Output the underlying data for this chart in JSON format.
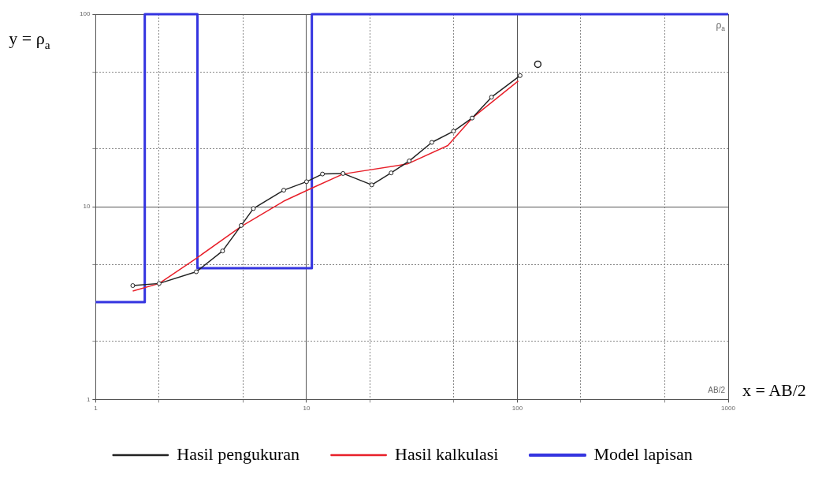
{
  "chart_data": {
    "type": "line",
    "xlabel": "x = AB/2",
    "ylabel": "y = ρ$_{a}$",
    "annotations": [
      "ρ$_{a}$",
      "AB/2"
    ],
    "log": "xy",
    "grid": true,
    "legend": "bottom",
    "xlim": [
      1,
      1000
    ],
    "ylim": [
      1,
      100
    ],
    "xticks": [
      1,
      {
        "value": 2,
        "label": null
      },
      {
        "value": 5,
        "label": null
      },
      10,
      {
        "value": 20,
        "label": null
      },
      {
        "value": 50,
        "label": null
      },
      100,
      {
        "value": 200,
        "label": null
      },
      {
        "value": 500,
        "label": null
      },
      1000
    ],
    "yticks": [
      1,
      {
        "value": 2,
        "label": null
      },
      {
        "value": 5,
        "label": null
      },
      10,
      {
        "value": 20,
        "label": null
      },
      {
        "value": 50,
        "label": null
      },
      100
    ],
    "series": [
      {
        "name": "Hasil pengukuran",
        "type": "line",
        "marker": "circle",
        "color": "#222222",
        "x": [
          1.5,
          2.0,
          3.0,
          4.0,
          4.9,
          5.6,
          7.8,
          10,
          11.9,
          14.9,
          20.4,
          25.2,
          30.7,
          39.3,
          49.8,
          61,
          75.4,
          103
        ],
        "values": [
          3.9,
          4.0,
          4.6,
          5.9,
          8.0,
          9.8,
          12.2,
          13.5,
          14.8,
          14.9,
          13.0,
          15.0,
          17.3,
          21.6,
          24.7,
          28.9,
          37.1,
          48
        ]
      },
      {
        "name": "Hasil kalkulasi",
        "type": "line",
        "marker": "none",
        "color": "#e8202a",
        "x": [
          1.5,
          2.0,
          3.0,
          4.9,
          7.8,
          10.6,
          14.9,
          30.1,
          46.8,
          61,
          101
        ],
        "values": [
          3.65,
          4.0,
          5.4,
          7.9,
          10.7,
          12.5,
          14.8,
          16.7,
          20.8,
          28.9,
          45
        ]
      },
      {
        "name": "Model lapisan",
        "type": "step",
        "color": "#3434e0",
        "x": [
          1,
          1.71,
          3.04,
          10.6,
          1000
        ],
        "values": [
          3.2,
          100,
          4.8,
          100,
          100
        ]
      },
      {
        "type": "scatter",
        "marker": "circle",
        "color": "#222222",
        "x": [
          125
        ],
        "values": [
          55
        ]
      }
    ]
  }
}
